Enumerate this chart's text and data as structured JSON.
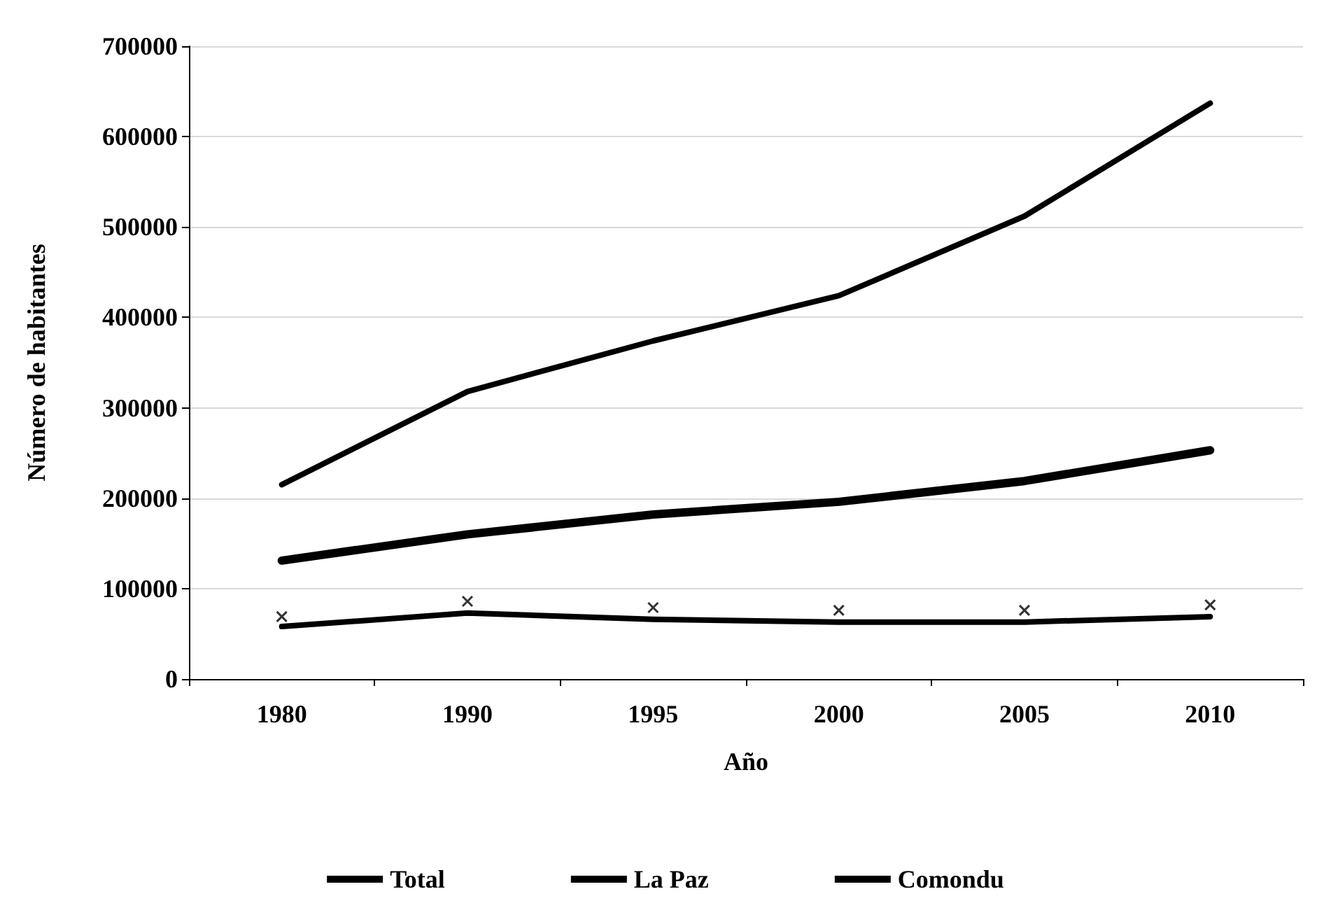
{
  "chart_data": {
    "type": "line",
    "xlabel": "Año",
    "ylabel": "Número de habitantes",
    "categories": [
      "1980",
      "1990",
      "1995",
      "2000",
      "2005",
      "2010"
    ],
    "series": [
      {
        "name": "Total",
        "color": "#000000",
        "values": [
          215000,
          318000,
          374000,
          424000,
          512000,
          637000
        ]
      },
      {
        "name": "La Paz",
        "color": "#000000",
        "values": [
          131000,
          160000,
          182000,
          196000,
          219000,
          253000
        ]
      },
      {
        "name": "Comondu",
        "color": "#000000",
        "values": [
          58000,
          73000,
          66000,
          63000,
          63000,
          69000
        ]
      },
      {
        "type": "scatter",
        "color": "#000000",
        "marker": "cross",
        "values": [
          69000,
          86000,
          79000,
          76000,
          76000,
          82000
        ]
      }
    ],
    "ylim": [
      0,
      700000
    ],
    "yticks": [
      0,
      100000,
      200000,
      300000,
      400000,
      500000,
      600000,
      700000
    ],
    "grid": "y",
    "legend": "bottom",
    "marker": "none"
  }
}
